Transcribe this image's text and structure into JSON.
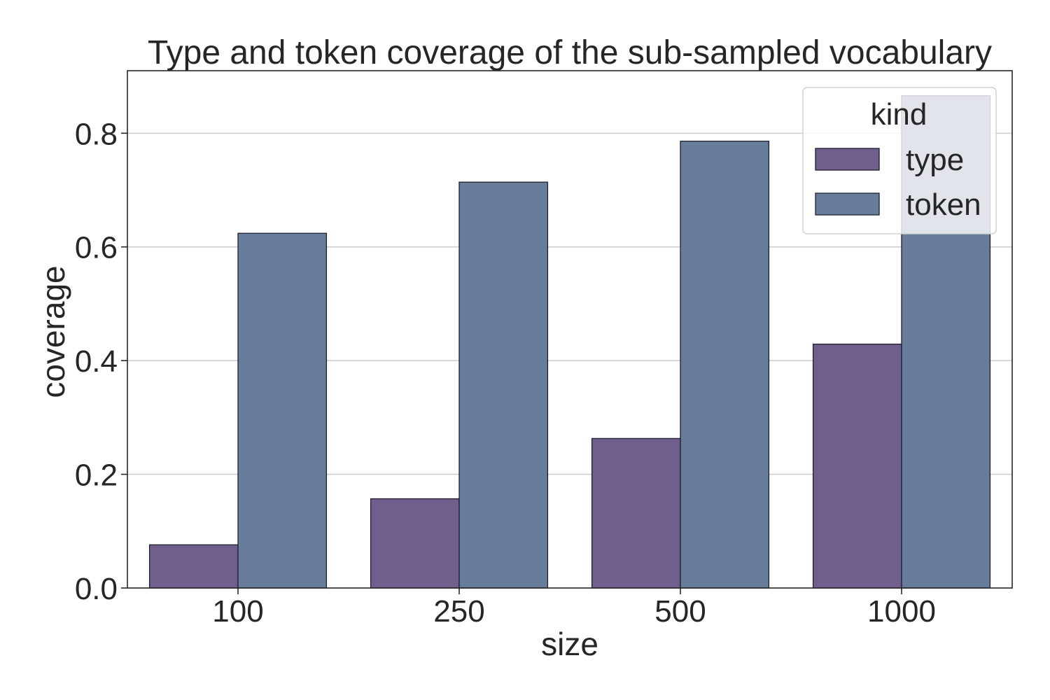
{
  "chart_data": {
    "type": "bar",
    "title": "Type and token coverage of the sub-sampled vocabulary",
    "xlabel": "size",
    "ylabel": "coverage",
    "categories": [
      "100",
      "250",
      "500",
      "1000"
    ],
    "series": [
      {
        "name": "type",
        "values": [
          0.076,
          0.157,
          0.263,
          0.429
        ],
        "color": "#705f8d"
      },
      {
        "name": "token",
        "values": [
          0.624,
          0.714,
          0.786,
          0.866
        ],
        "color": "#687d9b"
      }
    ],
    "ylim": [
      0,
      0.91
    ],
    "yticks": [
      "0.0",
      "0.2",
      "0.4",
      "0.6",
      "0.8"
    ],
    "grid": "horizontal",
    "legend": {
      "title": "kind",
      "placement": "top-right"
    }
  }
}
